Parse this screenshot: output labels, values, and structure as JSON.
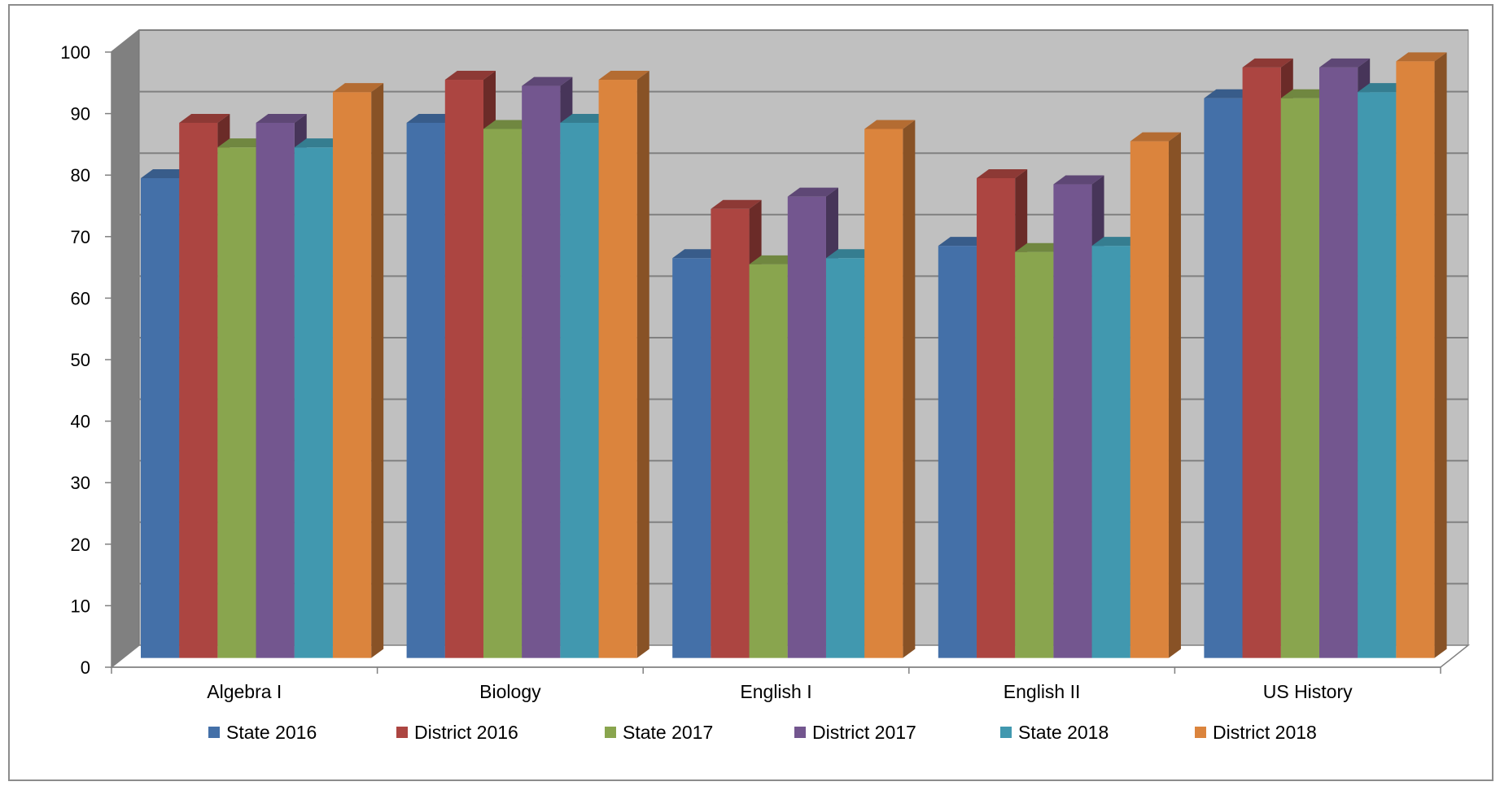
{
  "chart_data": {
    "type": "bar",
    "style": "3d-clustered-column",
    "categories": [
      "Algebra I",
      "Biology",
      "English I",
      "English II",
      "US History"
    ],
    "series": [
      {
        "name": "State 2016",
        "color": "#4470A8",
        "values": [
          78,
          87,
          65,
          67,
          91
        ]
      },
      {
        "name": "District 2016",
        "color": "#AC4541",
        "values": [
          87,
          94,
          73,
          78,
          96
        ]
      },
      {
        "name": "State 2017",
        "color": "#89A54E",
        "values": [
          83,
          86,
          64,
          66,
          91
        ]
      },
      {
        "name": "District 2017",
        "color": "#73568F",
        "values": [
          87,
          93,
          75,
          77,
          96
        ]
      },
      {
        "name": "State 2018",
        "color": "#4198AF",
        "values": [
          83,
          87,
          65,
          67,
          92
        ]
      },
      {
        "name": "District 2018",
        "color": "#DB843D",
        "values": [
          92,
          94,
          86,
          84,
          97
        ]
      }
    ],
    "ylim": [
      0,
      100
    ],
    "yticks": [
      0,
      10,
      20,
      30,
      40,
      50,
      60,
      70,
      80,
      90,
      100
    ],
    "grid": true,
    "legend": "bottom",
    "colors": {
      "back_wall": "#C0C0C0",
      "side_wall": "#808080",
      "floor": "#FFFFFF",
      "gridline": "#808080"
    }
  }
}
